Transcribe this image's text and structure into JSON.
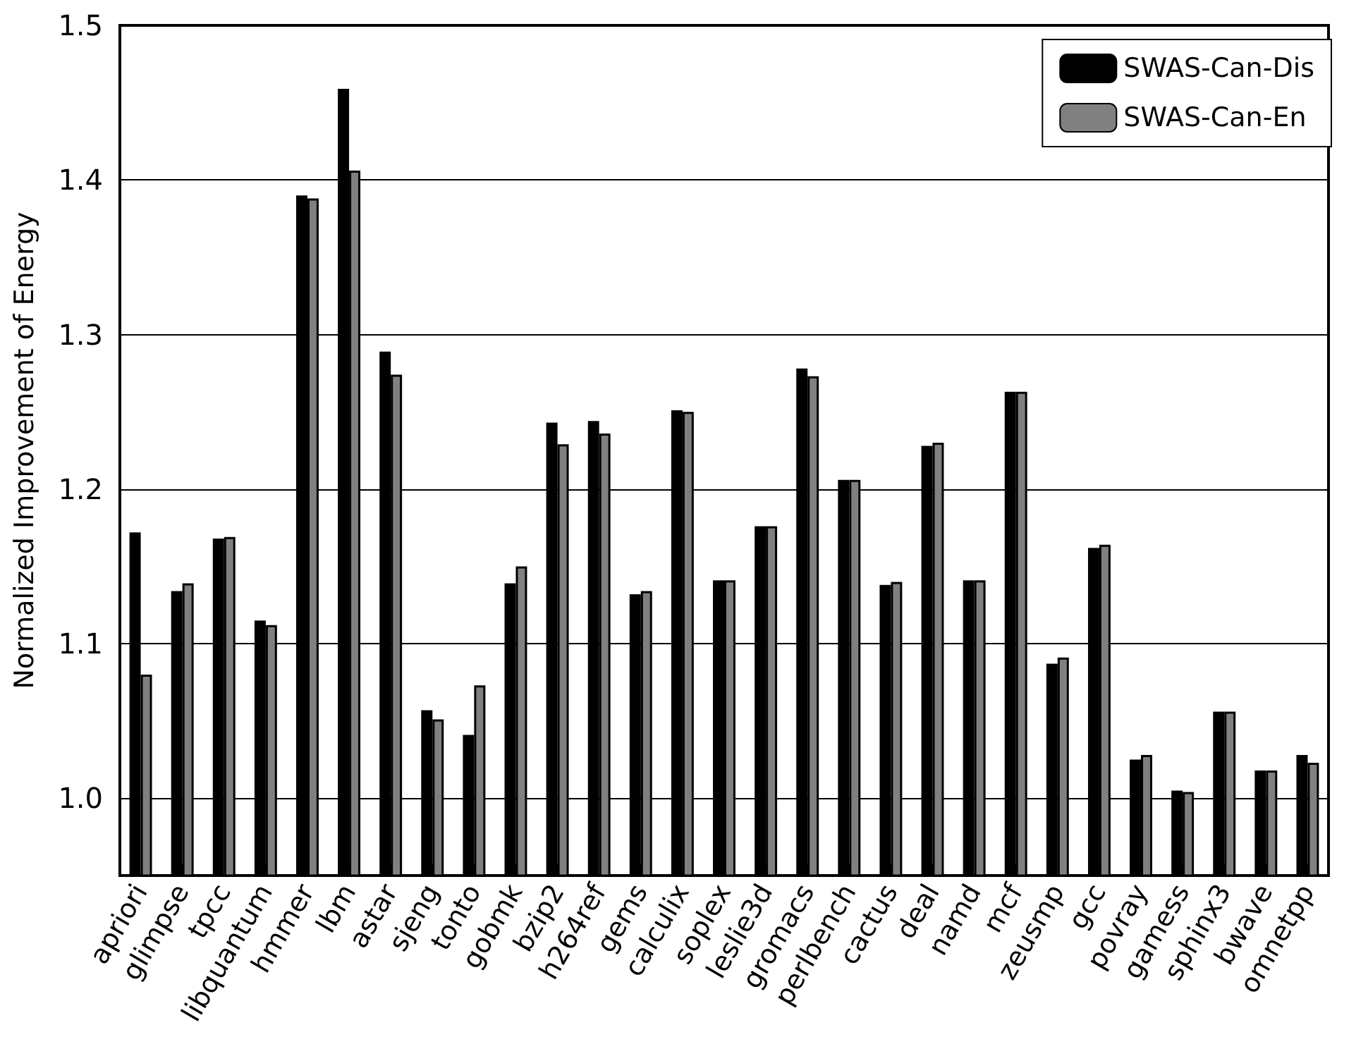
{
  "chart_data": {
    "type": "bar",
    "ylabel": "Normalized Improvement of Energy",
    "categories": [
      "apriori",
      "glimpse",
      "tpcc",
      "libquantum",
      "hmmer",
      "lbm",
      "astar",
      "sjeng",
      "tonto",
      "gobmk",
      "bzip2",
      "h264ref",
      "gems",
      "calculix",
      "soplex",
      "leslie3d",
      "gromacs",
      "perlbench",
      "cactus",
      "deal",
      "namd",
      "mcf",
      "zeusmp",
      "gcc",
      "povray",
      "gamess",
      "sphinx3",
      "bwave",
      "omnetpp"
    ],
    "series": [
      {
        "name": "SWAS-Can-Dis",
        "color": "#000000",
        "values": [
          1.172,
          1.134,
          1.168,
          1.115,
          1.39,
          1.459,
          1.289,
          1.057,
          1.041,
          1.139,
          1.243,
          1.244,
          1.132,
          1.251,
          1.141,
          1.176,
          1.278,
          1.206,
          1.138,
          1.228,
          1.141,
          1.263,
          1.087,
          1.162,
          1.025,
          1.005,
          1.056,
          1.018,
          1.028
        ]
      },
      {
        "name": "SWAS-Can-En",
        "color": "#808080",
        "values": [
          1.08,
          1.139,
          1.169,
          1.112,
          1.388,
          1.406,
          1.274,
          1.051,
          1.073,
          1.15,
          1.229,
          1.236,
          1.134,
          1.25,
          1.141,
          1.176,
          1.273,
          1.206,
          1.14,
          1.23,
          1.141,
          1.263,
          1.091,
          1.164,
          1.028,
          1.004,
          1.056,
          1.018,
          1.023
        ]
      }
    ],
    "ylim": [
      0.95,
      1.5
    ],
    "yticks": [
      {
        "value": 1.0,
        "label": "1.0"
      },
      {
        "value": 1.1,
        "label": "1.1"
      },
      {
        "value": 1.2,
        "label": "1.2"
      },
      {
        "value": 1.3,
        "label": "1.3"
      },
      {
        "value": 1.4,
        "label": "1.4"
      },
      {
        "value": 1.5,
        "label": "1.5"
      }
    ],
    "grid": "y",
    "legend": "top right"
  }
}
